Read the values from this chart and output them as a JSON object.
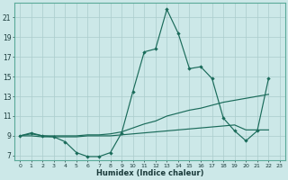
{
  "xlabel": "Humidex (Indice chaleur)",
  "xlim": [
    -0.5,
    23.5
  ],
  "ylim": [
    6.5,
    22.5
  ],
  "xticks": [
    0,
    1,
    2,
    3,
    4,
    5,
    6,
    7,
    8,
    9,
    10,
    11,
    12,
    13,
    14,
    15,
    16,
    17,
    18,
    19,
    20,
    21,
    22,
    23
  ],
  "yticks": [
    7,
    9,
    11,
    13,
    15,
    17,
    19,
    21
  ],
  "bg_color": "#cce8e8",
  "line_color": "#1a6b5a",
  "grid_color": "#aacccc",
  "series": {
    "max": [
      9.0,
      9.3,
      9.0,
      8.9,
      8.4,
      7.3,
      6.9,
      6.9,
      7.3,
      9.3,
      13.5,
      17.5,
      17.8,
      21.8,
      19.4,
      15.8,
      16.0,
      14.8,
      10.8,
      9.5,
      8.5,
      9.5,
      14.8
    ],
    "mean": [
      9.0,
      9.2,
      9.0,
      9.0,
      9.0,
      9.0,
      9.1,
      9.1,
      9.2,
      9.4,
      9.8,
      10.2,
      10.5,
      11.0,
      11.3,
      11.6,
      11.8,
      12.1,
      12.4,
      12.6,
      12.8,
      13.0,
      13.2
    ],
    "min": [
      9.0,
      9.0,
      8.9,
      8.9,
      8.9,
      8.9,
      9.0,
      9.0,
      9.0,
      9.1,
      9.2,
      9.3,
      9.4,
      9.5,
      9.6,
      9.7,
      9.8,
      9.9,
      10.0,
      10.1,
      9.6,
      9.6,
      9.6
    ]
  }
}
